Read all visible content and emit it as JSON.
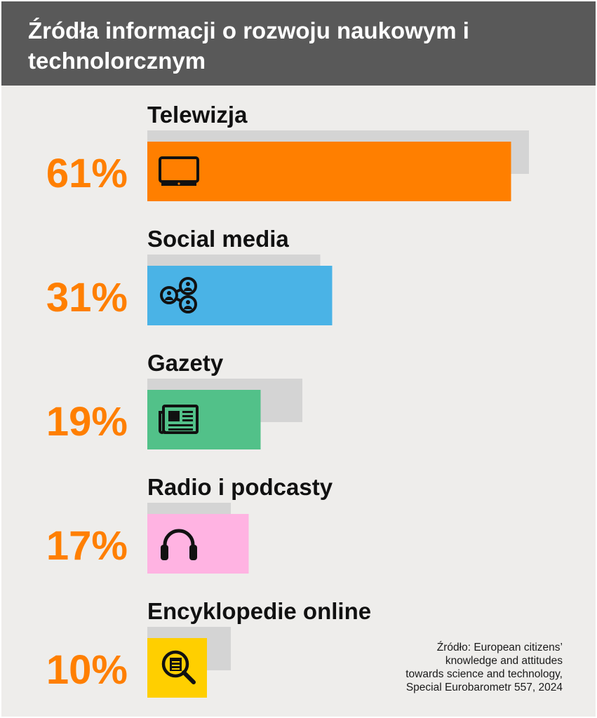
{
  "header": {
    "title": "Źródła informacji o rozwoju naukowym i technolorcznym"
  },
  "chart_data": {
    "type": "bar",
    "orientation": "horizontal",
    "categories": [
      "Telewizja",
      "Social media",
      "Gazety",
      "Radio i podcasty",
      "Encyklopedie online"
    ],
    "series": [
      {
        "values": [
          61,
          31,
          19,
          17,
          10
        ],
        "value_labels": [
          "61%",
          "31%",
          "19%",
          "17%",
          "10%"
        ]
      },
      {
        "values": [
          64,
          29,
          26,
          14,
          14
        ]
      }
    ],
    "colors": [
      "#ff7f00",
      "#4ab3e6",
      "#52c189",
      "#ffb3e2",
      "#ffcf00"
    ],
    "shadow_color": "#d4d4d4",
    "value_label_color": "#ff7f00",
    "icons": [
      "tv-icon",
      "share-network-icon",
      "newspaper-icon",
      "headphones-icon",
      "search-document-icon"
    ],
    "xlim": [
      0,
      100
    ],
    "grid": false,
    "legend": "none"
  },
  "source": {
    "lines": [
      "Źródło: European citizens’",
      "knowledge and attitudes",
      "towards science and technology,",
      "Special Eurobarometr 557, 2024"
    ]
  }
}
